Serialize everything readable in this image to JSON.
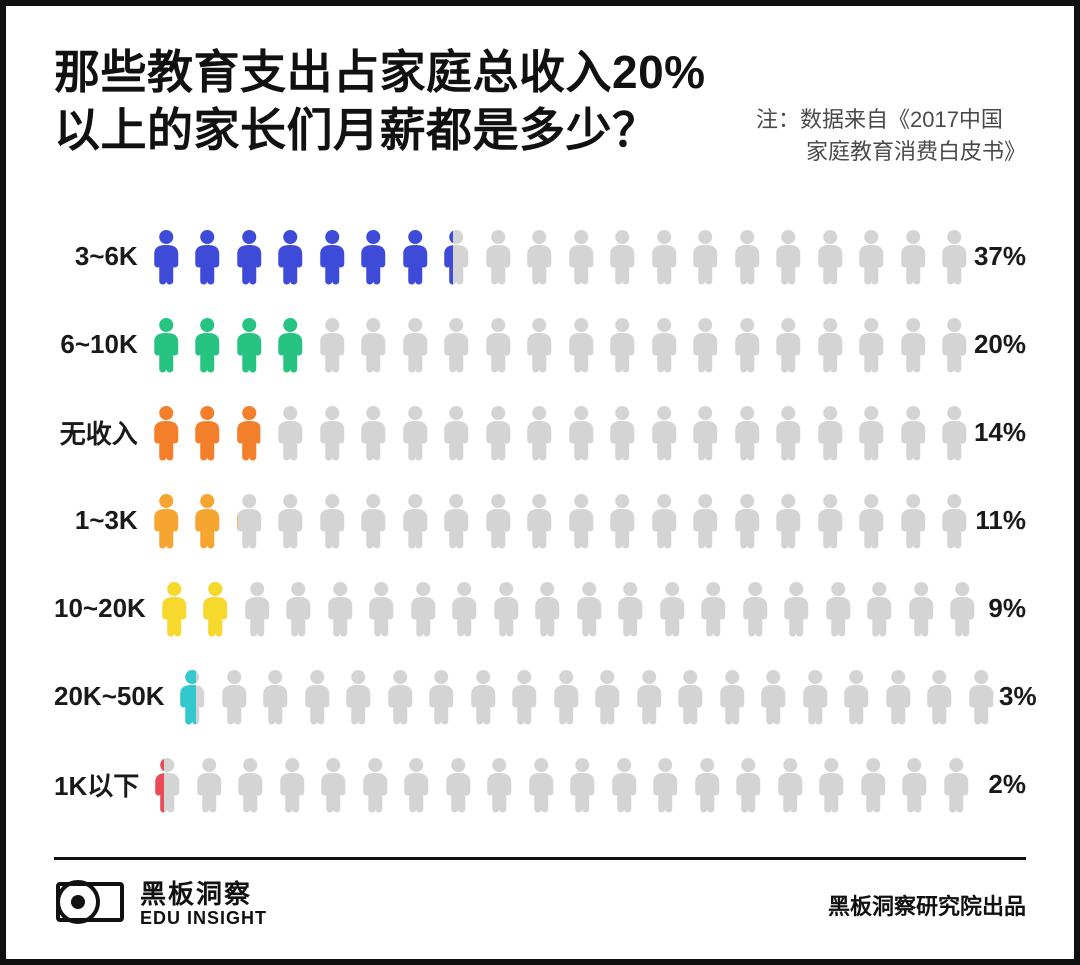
{
  "title": "那些教育支出占家庭总收入20%以上的家长们月薪都是多少？",
  "note_line1": "注：数据来自《2017中国",
  "note_line2": "家庭教育消费白皮书》",
  "chart": {
    "type": "pictogram",
    "icons_per_row": 20,
    "percent_per_icon": 5,
    "icon_inactive_color": "#d4d4d4",
    "background_color": "#ffffff",
    "border_color": "#111111",
    "label_fontsize": 26,
    "pct_fontsize": 26,
    "rows": [
      {
        "label": "3~6K",
        "percent": 37,
        "color": "#3e4bd8",
        "pct_label": "37%"
      },
      {
        "label": "6~10K",
        "percent": 20,
        "color": "#26c381",
        "pct_label": "20%"
      },
      {
        "label": "无收入",
        "percent": 14,
        "color": "#f47f2b",
        "pct_label": "14%"
      },
      {
        "label": "1~3K",
        "percent": 11,
        "color": "#f7a531",
        "pct_label": "11%"
      },
      {
        "label": "10~20K",
        "percent": 9,
        "color": "#f6d92c",
        "pct_label": "9%"
      },
      {
        "label": "20K~50K",
        "percent": 3,
        "color": "#33c8cd",
        "pct_label": "3%"
      },
      {
        "label": "1K以下",
        "percent": 2,
        "color": "#e84b55",
        "pct_label": "2%"
      }
    ]
  },
  "brand": {
    "cn": "黑板洞察",
    "en": "EDU INSIGHT"
  },
  "credit": "黑板洞察研究院出品"
}
